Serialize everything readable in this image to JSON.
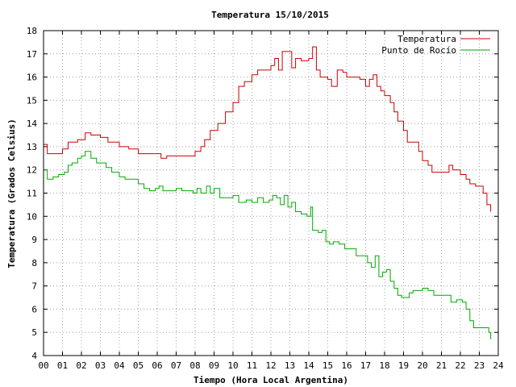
{
  "chart_data": {
    "type": "line",
    "title": "Temperatura 15/10/2015",
    "xlabel": "Tiempo (Hora Local Argentina)",
    "ylabel": "Temperatura (Grados Celsius)",
    "xlim": [
      0,
      24
    ],
    "ylim": [
      4,
      18
    ],
    "x_ticks": [
      "00",
      "01",
      "02",
      "03",
      "04",
      "05",
      "06",
      "07",
      "08",
      "09",
      "10",
      "11",
      "12",
      "13",
      "14",
      "15",
      "16",
      "17",
      "18",
      "19",
      "20",
      "21",
      "22",
      "23",
      "24"
    ],
    "y_ticks": [
      "4",
      "5",
      "6",
      "7",
      "8",
      "9",
      "10",
      "11",
      "12",
      "13",
      "14",
      "15",
      "16",
      "17",
      "18"
    ],
    "grid": true,
    "legend_position": "top-right",
    "series": [
      {
        "name": "Temperatura",
        "color": "#cc0000",
        "points": [
          [
            0.0,
            13.1
          ],
          [
            0.2,
            12.7
          ],
          [
            0.5,
            12.7
          ],
          [
            1.0,
            12.9
          ],
          [
            1.3,
            13.2
          ],
          [
            1.8,
            13.3
          ],
          [
            2.2,
            13.6
          ],
          [
            2.5,
            13.5
          ],
          [
            3.0,
            13.4
          ],
          [
            3.4,
            13.2
          ],
          [
            4.0,
            13.0
          ],
          [
            4.5,
            12.9
          ],
          [
            5.0,
            12.7
          ],
          [
            5.5,
            12.7
          ],
          [
            6.0,
            12.7
          ],
          [
            6.2,
            12.5
          ],
          [
            6.5,
            12.6
          ],
          [
            7.0,
            12.6
          ],
          [
            7.5,
            12.6
          ],
          [
            8.0,
            12.8
          ],
          [
            8.3,
            13.0
          ],
          [
            8.5,
            13.3
          ],
          [
            8.8,
            13.7
          ],
          [
            9.2,
            14.0
          ],
          [
            9.6,
            14.5
          ],
          [
            10.0,
            14.9
          ],
          [
            10.3,
            15.6
          ],
          [
            10.6,
            15.8
          ],
          [
            11.0,
            16.1
          ],
          [
            11.3,
            16.3
          ],
          [
            11.7,
            16.3
          ],
          [
            12.0,
            16.5
          ],
          [
            12.2,
            16.8
          ],
          [
            12.4,
            16.3
          ],
          [
            12.6,
            17.1
          ],
          [
            13.0,
            17.1
          ],
          [
            13.1,
            16.4
          ],
          [
            13.3,
            16.8
          ],
          [
            13.6,
            16.7
          ],
          [
            14.0,
            16.8
          ],
          [
            14.2,
            17.3
          ],
          [
            14.4,
            16.3
          ],
          [
            14.6,
            16.0
          ],
          [
            15.0,
            15.9
          ],
          [
            15.2,
            15.6
          ],
          [
            15.5,
            16.3
          ],
          [
            15.8,
            16.2
          ],
          [
            16.0,
            16.0
          ],
          [
            16.3,
            16.0
          ],
          [
            16.7,
            15.9
          ],
          [
            17.0,
            15.6
          ],
          [
            17.2,
            15.9
          ],
          [
            17.4,
            16.1
          ],
          [
            17.6,
            15.6
          ],
          [
            17.8,
            15.4
          ],
          [
            18.0,
            15.2
          ],
          [
            18.3,
            14.9
          ],
          [
            18.5,
            14.5
          ],
          [
            18.7,
            14.1
          ],
          [
            19.0,
            13.7
          ],
          [
            19.2,
            13.2
          ],
          [
            19.5,
            13.2
          ],
          [
            19.8,
            12.8
          ],
          [
            20.0,
            12.4
          ],
          [
            20.3,
            12.2
          ],
          [
            20.5,
            11.9
          ],
          [
            20.8,
            11.9
          ],
          [
            21.1,
            11.9
          ],
          [
            21.4,
            12.2
          ],
          [
            21.6,
            12.0
          ],
          [
            22.0,
            11.8
          ],
          [
            22.3,
            11.6
          ],
          [
            22.5,
            11.4
          ],
          [
            22.8,
            11.3
          ],
          [
            23.0,
            11.3
          ],
          [
            23.2,
            11.0
          ],
          [
            23.4,
            10.5
          ],
          [
            23.6,
            10.2
          ]
        ]
      },
      {
        "name": "Punto de Rocío",
        "color": "#00aa00",
        "points": [
          [
            0.0,
            12.0
          ],
          [
            0.2,
            11.6
          ],
          [
            0.5,
            11.7
          ],
          [
            0.8,
            11.8
          ],
          [
            1.1,
            11.9
          ],
          [
            1.3,
            12.2
          ],
          [
            1.5,
            12.3
          ],
          [
            1.8,
            12.5
          ],
          [
            2.0,
            12.6
          ],
          [
            2.2,
            12.8
          ],
          [
            2.5,
            12.5
          ],
          [
            2.8,
            12.3
          ],
          [
            3.0,
            12.3
          ],
          [
            3.3,
            12.1
          ],
          [
            3.6,
            11.9
          ],
          [
            4.0,
            11.7
          ],
          [
            4.3,
            11.6
          ],
          [
            4.6,
            11.6
          ],
          [
            5.0,
            11.4
          ],
          [
            5.3,
            11.2
          ],
          [
            5.6,
            11.1
          ],
          [
            5.9,
            11.2
          ],
          [
            6.1,
            11.3
          ],
          [
            6.3,
            11.1
          ],
          [
            6.6,
            11.1
          ],
          [
            7.0,
            11.2
          ],
          [
            7.3,
            11.1
          ],
          [
            7.6,
            11.1
          ],
          [
            7.9,
            11.0
          ],
          [
            8.1,
            11.2
          ],
          [
            8.3,
            11.0
          ],
          [
            8.6,
            11.3
          ],
          [
            8.8,
            11.0
          ],
          [
            9.0,
            11.2
          ],
          [
            9.3,
            10.8
          ],
          [
            9.6,
            10.8
          ],
          [
            10.0,
            10.9
          ],
          [
            10.3,
            10.6
          ],
          [
            10.7,
            10.7
          ],
          [
            11.0,
            10.6
          ],
          [
            11.3,
            10.8
          ],
          [
            11.6,
            10.6
          ],
          [
            11.9,
            10.7
          ],
          [
            12.1,
            10.9
          ],
          [
            12.3,
            10.8
          ],
          [
            12.5,
            10.5
          ],
          [
            12.7,
            10.9
          ],
          [
            12.9,
            10.4
          ],
          [
            13.1,
            10.6
          ],
          [
            13.3,
            10.2
          ],
          [
            13.6,
            10.1
          ],
          [
            13.9,
            10.0
          ],
          [
            14.1,
            10.4
          ],
          [
            14.2,
            9.4
          ],
          [
            14.5,
            9.3
          ],
          [
            14.7,
            9.4
          ],
          [
            14.9,
            8.9
          ],
          [
            15.1,
            8.8
          ],
          [
            15.3,
            8.9
          ],
          [
            15.6,
            8.8
          ],
          [
            15.9,
            8.6
          ],
          [
            16.2,
            8.6
          ],
          [
            16.5,
            8.3
          ],
          [
            16.8,
            8.3
          ],
          [
            17.1,
            8.0
          ],
          [
            17.3,
            7.8
          ],
          [
            17.5,
            8.3
          ],
          [
            17.7,
            7.4
          ],
          [
            17.9,
            7.6
          ],
          [
            18.1,
            7.7
          ],
          [
            18.3,
            7.2
          ],
          [
            18.5,
            6.9
          ],
          [
            18.7,
            6.6
          ],
          [
            18.9,
            6.5
          ],
          [
            19.1,
            6.5
          ],
          [
            19.3,
            6.7
          ],
          [
            19.5,
            6.8
          ],
          [
            19.8,
            6.8
          ],
          [
            20.0,
            6.9
          ],
          [
            20.3,
            6.8
          ],
          [
            20.6,
            6.6
          ],
          [
            20.9,
            6.6
          ],
          [
            21.2,
            6.6
          ],
          [
            21.5,
            6.3
          ],
          [
            21.8,
            6.4
          ],
          [
            22.1,
            6.3
          ],
          [
            22.3,
            6.0
          ],
          [
            22.5,
            5.5
          ],
          [
            22.7,
            5.2
          ],
          [
            22.9,
            5.2
          ],
          [
            23.1,
            5.2
          ],
          [
            23.3,
            5.2
          ],
          [
            23.5,
            5.0
          ],
          [
            23.6,
            4.7
          ]
        ]
      }
    ]
  }
}
